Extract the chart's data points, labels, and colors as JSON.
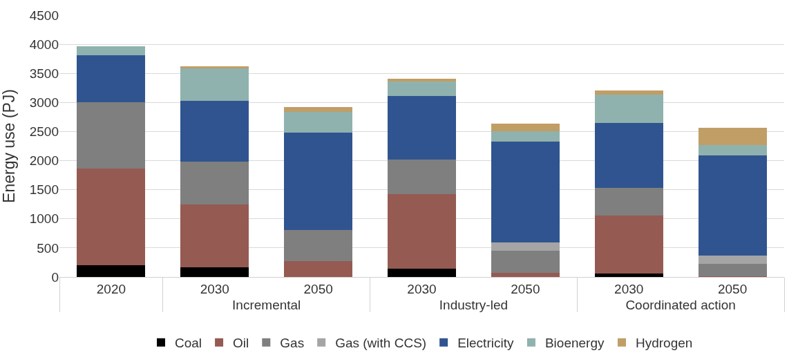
{
  "chart_data": {
    "type": "bar",
    "stacked": true,
    "ylabel": "Energy use (PJ)",
    "categories": [
      "2020",
      "2030",
      "2050",
      "2030",
      "2050",
      "2030",
      "2050"
    ],
    "annotations": [
      "Incremental",
      "Industry-led",
      "Coordinated action"
    ],
    "ylim": [
      0,
      4500
    ],
    "yticks": [
      0,
      500,
      1000,
      1500,
      2000,
      2500,
      3000,
      3500,
      4000,
      4500
    ],
    "grid": "y",
    "legend": "bottom",
    "series": [
      {
        "name": "Coal",
        "color": "#000000",
        "values": [
          200,
          170,
          0,
          140,
          0,
          60,
          0
        ]
      },
      {
        "name": "Oil",
        "color": "#955a52",
        "values": [
          1670,
          1080,
          270,
          1290,
          70,
          1000,
          10
        ]
      },
      {
        "name": "Gas",
        "color": "#7f7f7f",
        "values": [
          1130,
          730,
          540,
          590,
          380,
          470,
          210
        ]
      },
      {
        "name": "Gas (with CCS)",
        "color": "#a5a5a5",
        "values": [
          0,
          0,
          0,
          0,
          140,
          0,
          150
        ]
      },
      {
        "name": "Electricity",
        "color": "#30548f",
        "values": [
          810,
          1050,
          1670,
          1090,
          1740,
          1120,
          1720
        ]
      },
      {
        "name": "Bioenergy",
        "color": "#8fb2ae",
        "values": [
          160,
          560,
          360,
          250,
          180,
          480,
          180
        ]
      },
      {
        "name": "Hydrogen",
        "color": "#c09e66",
        "values": [
          0,
          30,
          80,
          50,
          130,
          70,
          290
        ]
      }
    ]
  }
}
